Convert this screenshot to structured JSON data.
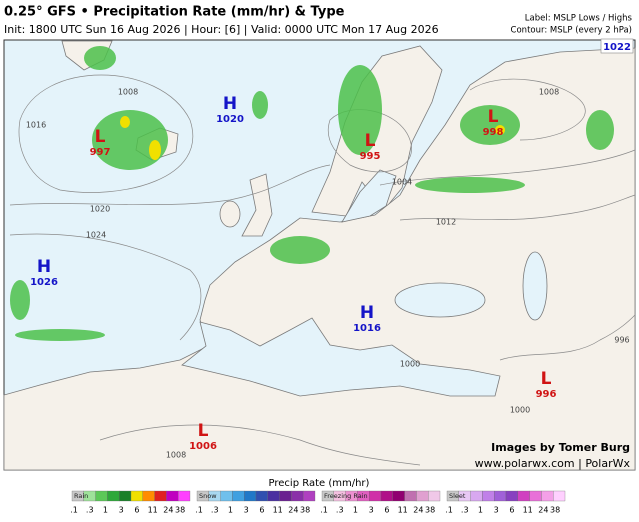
{
  "header": {
    "title": "0.25° GFS • Precipitation Rate (mm/hr) & Type",
    "subtitle": "Init: 1800 UTC Sun 16 Aug 2026 | Hour: [6] | Valid: 0000 UTC Mon 17 Aug 2026",
    "label_note": "Label: MSLP Lows / Highs",
    "contour_note": "Contour: MSLP (every 2 hPa)"
  },
  "map": {
    "box_label": "1022",
    "pressure_centers": [
      {
        "letter": "H",
        "value": "1020",
        "color": "#1414c8"
      },
      {
        "letter": "L",
        "value": "997",
        "color": "#d01414"
      },
      {
        "letter": "L",
        "value": "995",
        "color": "#d01414"
      },
      {
        "letter": "L",
        "value": "998",
        "color": "#d01414"
      },
      {
        "letter": "H",
        "value": "1026",
        "color": "#1414c8"
      },
      {
        "letter": "H",
        "value": "1016",
        "color": "#1414c8"
      },
      {
        "letter": "L",
        "value": "996",
        "color": "#d01414"
      },
      {
        "letter": "L",
        "value": "1006",
        "color": "#d01414"
      }
    ],
    "contour_labels": [
      "1008",
      "1016",
      "1020",
      "1024",
      "1004",
      "1012",
      "1008",
      "1000",
      "1008",
      "996",
      "1000"
    ]
  },
  "credits": [
    "Images by Tomer Burg",
    "www.polarwx.com | PolarWx"
  ],
  "legend": {
    "title": "Precip Rate (mm/hr)",
    "ticks": [
      ".1",
      ".3",
      "1",
      "3",
      "6",
      "11",
      "24",
      "38"
    ],
    "groups": [
      {
        "name": "Rain",
        "colors": [
          "#c8c8c8",
          "#9ee29a",
          "#5cc858",
          "#2ea83a",
          "#1a8028",
          "#f0e000",
          "#ff8c00",
          "#e02020",
          "#c000c0",
          "#ff40ff"
        ]
      },
      {
        "name": "Snow",
        "colors": [
          "#c8c8c8",
          "#a8d8f0",
          "#70c0ec",
          "#40a0e0",
          "#2078c8",
          "#3050b0",
          "#4a30a0",
          "#6a2090",
          "#8a30a8",
          "#b040c0"
        ]
      },
      {
        "name": "Freezing Rain",
        "colors": [
          "#c8c8c8",
          "#f4c0e0",
          "#ec90d0",
          "#e060c0",
          "#d030a8",
          "#b01088",
          "#900070",
          "#c070b0",
          "#e0a0d0",
          "#f0c8e8"
        ]
      },
      {
        "name": "Sleet",
        "colors": [
          "#c8c8c8",
          "#e8c8f4",
          "#d8a8f0",
          "#c080e8",
          "#a060d8",
          "#8840c0",
          "#d040c0",
          "#e870d8",
          "#f4a0e8",
          "#ffd0ff"
        ]
      }
    ]
  }
}
